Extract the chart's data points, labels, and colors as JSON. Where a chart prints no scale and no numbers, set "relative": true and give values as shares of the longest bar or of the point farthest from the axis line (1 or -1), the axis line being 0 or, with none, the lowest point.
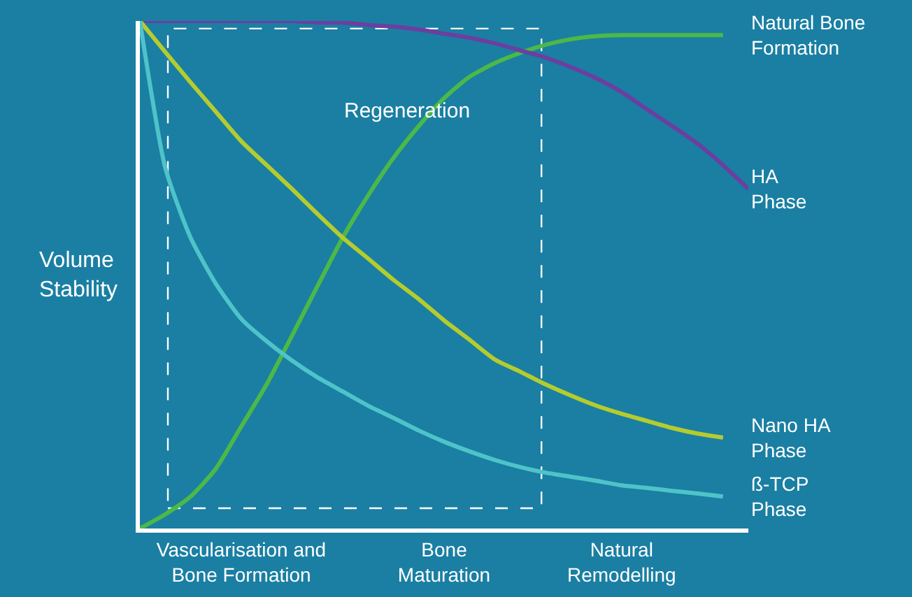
{
  "chart_data": {
    "type": "line",
    "relative": true,
    "ylabel": "Volume Stability",
    "categories": [
      null,
      null,
      null,
      null,
      "Vascularisation and Bone Formation",
      null,
      null,
      null,
      null,
      null,
      null,
      null,
      "Bone Maturation",
      null,
      null,
      null,
      null,
      null,
      null,
      "Natural Remodelling",
      null,
      null,
      null,
      null,
      null
    ],
    "tick_labels": "x",
    "legend": false,
    "marker": "none",
    "line_style": "solid",
    "annotations": [
      "Regeneration"
    ],
    "series": [
      {
        "name": "Natural Bone Formation",
        "color": "#4cb848",
        "values": [
          0,
          0.028,
          0.063,
          0.118,
          0.201,
          0.284,
          0.38,
          0.477,
          0.573,
          0.656,
          0.73,
          0.793,
          0.848,
          0.89,
          0.917,
          0.937,
          0.953,
          0.964,
          0.97,
          0.972,
          0.972,
          0.972,
          0.972,
          0.972,
          null
        ]
      },
      {
        "name": "HA Phase",
        "color": "#6b3fa0",
        "values": [
          1,
          1,
          1,
          1,
          1,
          1,
          1,
          0.997,
          0.997,
          0.992,
          0.989,
          0.983,
          0.975,
          0.967,
          0.956,
          0.942,
          0.928,
          0.909,
          0.887,
          0.86,
          0.826,
          0.793,
          0.758,
          0.716,
          0.669
        ]
      },
      {
        "name": "Nano HA Phase",
        "color": "#b5cc2e",
        "values": [
          1,
          0.939,
          0.879,
          0.821,
          0.763,
          0.716,
          0.669,
          0.62,
          0.573,
          0.532,
          0.49,
          0.452,
          0.41,
          0.372,
          0.333,
          0.309,
          0.284,
          0.262,
          0.242,
          0.226,
          0.212,
          0.198,
          0.187,
          0.179,
          null
        ]
      },
      {
        "name": "ß-TCP Phase",
        "color": "#4ec3c9",
        "values": [
          1,
          0.711,
          0.573,
          0.482,
          0.413,
          0.369,
          0.331,
          0.298,
          0.27,
          0.242,
          0.218,
          0.193,
          0.171,
          0.152,
          0.135,
          0.121,
          0.11,
          0.102,
          0.094,
          0.085,
          0.08,
          0.074,
          0.069,
          0.063,
          null
        ]
      }
    ]
  }
}
